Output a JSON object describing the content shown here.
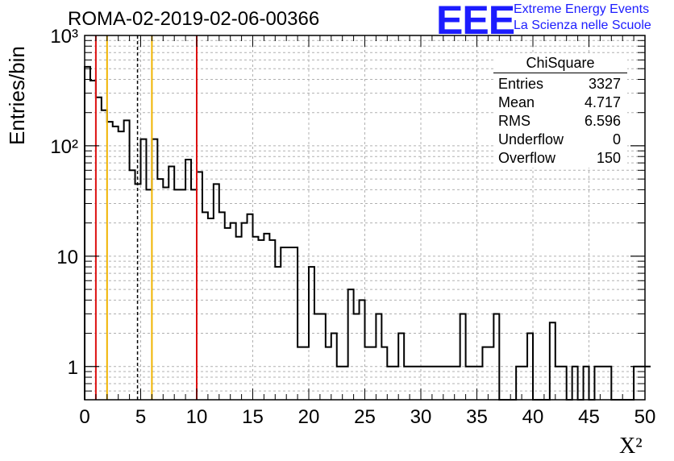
{
  "header": {
    "title": "ROMA-02-2019-02-06-00366",
    "logo_mark": "EEE",
    "logo_line1": "Extreme Energy Events",
    "logo_line2": "La Scienza nelle Scuole"
  },
  "stats": {
    "title": "ChiSquare",
    "rows": [
      {
        "label": "Entries",
        "value": "3327"
      },
      {
        "label": "Mean",
        "value": "4.717"
      },
      {
        "label": "RMS",
        "value": "6.596"
      },
      {
        "label": "Underflow",
        "value": "0"
      },
      {
        "label": "Overflow",
        "value": "150"
      }
    ]
  },
  "chart_data": {
    "type": "histogram",
    "xlabel": "X²",
    "ylabel": "Entries/bin",
    "xlim": [
      0,
      50
    ],
    "ylim": [
      0.5,
      1000
    ],
    "y_scale": "log",
    "grid": true,
    "bin_width": 0.5,
    "x_ticks": [
      0,
      5,
      10,
      15,
      20,
      25,
      30,
      35,
      40,
      45,
      50
    ],
    "x_tick_labels": [
      "0",
      "5",
      "10",
      "15",
      "20",
      "25",
      "30",
      "35",
      "40",
      "45",
      "50"
    ],
    "y_tick_labels": [
      {
        "value": 1,
        "label": "1"
      },
      {
        "value": 10,
        "label": "10"
      },
      {
        "value": 100,
        "label": "10²"
      },
      {
        "value": 1000,
        "label": "10³"
      }
    ],
    "counts": [
      520,
      390,
      275,
      210,
      165,
      150,
      135,
      170,
      60,
      45,
      115,
      40,
      115,
      50,
      42,
      65,
      40,
      40,
      75,
      40,
      58,
      25,
      22,
      45,
      25,
      18,
      20,
      15,
      20,
      24,
      15,
      14,
      16,
      14,
      8,
      12,
      12,
      12,
      1.5,
      1.5,
      8,
      3,
      3,
      1.5,
      2,
      1,
      1,
      5,
      3,
      4,
      1.5,
      1.5,
      3,
      1.5,
      1,
      1,
      2,
      1,
      1,
      1,
      1,
      1,
      1,
      1,
      1,
      1,
      1,
      3,
      1,
      1,
      1,
      1.5,
      1.5,
      3,
      0.5,
      0.5,
      0.5,
      1,
      1,
      2,
      0.5,
      0.5,
      0.5,
      2.5,
      1,
      1,
      0.5,
      1,
      0.5,
      1,
      0.5,
      1,
      1,
      1,
      0.5,
      0.5,
      0.5,
      0.5,
      1,
      1,
      1
    ],
    "vertical_lines": [
      {
        "x": 1,
        "color": "#dd1111",
        "style": "solid"
      },
      {
        "x": 2,
        "color": "#f0b400",
        "style": "solid"
      },
      {
        "x": 4.717,
        "color": "#000000",
        "style": "dashed"
      },
      {
        "x": 6,
        "color": "#f0b400",
        "style": "solid"
      },
      {
        "x": 10,
        "color": "#dd1111",
        "style": "solid"
      }
    ]
  }
}
